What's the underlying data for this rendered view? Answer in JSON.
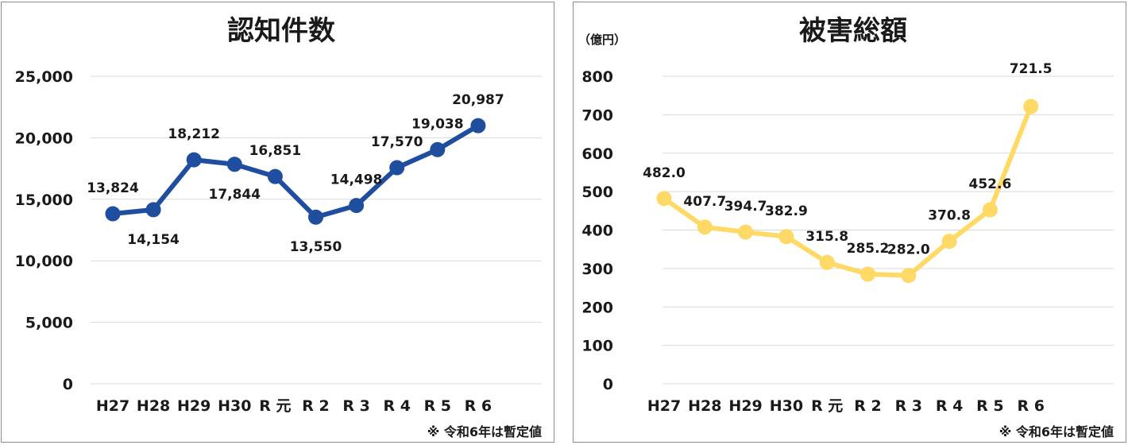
{
  "chart_data": [
    {
      "type": "line",
      "title": "認知件数",
      "categories": [
        "H27",
        "H28",
        "H29",
        "H30",
        "R元",
        "R2",
        "R3",
        "R4",
        "R5",
        "R6"
      ],
      "category_labels": [
        "H27",
        "H28",
        "H29",
        "H30",
        "R 元",
        "R 2",
        "R 3",
        "R 4",
        "R 5",
        "R 6"
      ],
      "series": [
        {
          "values": [
            13824,
            14154,
            18212,
            17844,
            16851,
            13550,
            14498,
            17570,
            19038,
            20987
          ]
        }
      ],
      "data_labels": [
        "13,824",
        "14,154",
        "18,212",
        "17,844",
        "16,851",
        "13,550",
        "14,498",
        "17,570",
        "19,038",
        "20,987"
      ],
      "ylim": [
        0,
        25000
      ],
      "yticks": [
        0,
        5000,
        10000,
        15000,
        20000,
        25000
      ],
      "ytick_labels": [
        "0",
        "5,000",
        "10,000",
        "15,000",
        "20,000",
        "25,000"
      ],
      "grid": true,
      "color": "#1f4e9e",
      "note": "※ 令和6年は暫定値"
    },
    {
      "type": "line",
      "title": "被害総額",
      "unit_label": "（億円）",
      "categories": [
        "H27",
        "H28",
        "H29",
        "H30",
        "R元",
        "R2",
        "R3",
        "R4",
        "R5",
        "R6"
      ],
      "category_labels": [
        "H27",
        "H28",
        "H29",
        "H30",
        "R 元",
        "R 2",
        "R 3",
        "R 4",
        "R 5",
        "R 6"
      ],
      "series": [
        {
          "values": [
            482.0,
            407.7,
            394.7,
            382.9,
            315.8,
            285.2,
            282.0,
            370.8,
            452.6,
            721.5
          ]
        }
      ],
      "data_labels": [
        "482.0",
        "407.7",
        "394.7",
        "382.9",
        "315.8",
        "285.2",
        "282.0",
        "370.8",
        "452.6",
        "721.5"
      ],
      "ylim": [
        0,
        800
      ],
      "yticks": [
        0,
        100,
        200,
        300,
        400,
        500,
        600,
        700,
        800
      ],
      "ytick_labels": [
        "0",
        "100",
        "200",
        "300",
        "400",
        "500",
        "600",
        "700",
        "800"
      ],
      "grid": true,
      "color": "#ffd966",
      "note": "※ 令和6年は暫定値"
    }
  ]
}
